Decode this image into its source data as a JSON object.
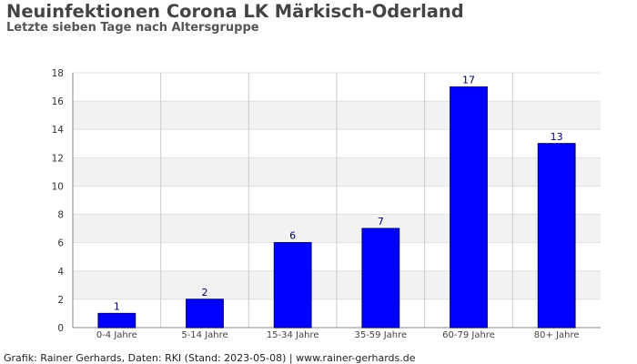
{
  "header": {
    "title": "Neuinfektionen Corona LK Märkisch-Oderland",
    "subtitle": "Letzte sieben Tage nach Altersgruppe"
  },
  "footer": {
    "credit": "Grafik: Rainer Gerhards, Daten: RKI (Stand: 2023-05-08) | www.rainer-gerhards.de"
  },
  "colors": {
    "bar_fill": "#0000ff",
    "bar_stroke": "#00008b",
    "band": "#f2f2f2",
    "grid": "#cccccc",
    "value_label": "#000066"
  },
  "chart_data": {
    "type": "bar",
    "title": "Neuinfektionen Corona LK Märkisch-Oderland",
    "subtitle": "Letzte sieben Tage nach Altersgruppe",
    "xlabel": "",
    "ylabel": "",
    "categories": [
      "0-4 Jahre",
      "5-14 Jahre",
      "15-34 Jahre",
      "35-59 Jahre",
      "60-79 Jahre",
      "80+ Jahre"
    ],
    "values": [
      1,
      2,
      6,
      7,
      17,
      13
    ],
    "ylim": [
      0,
      18
    ],
    "yticks": [
      0,
      2,
      4,
      6,
      8,
      10,
      12,
      14,
      16,
      18
    ],
    "data_labels": true,
    "grid": true,
    "legend": "none"
  }
}
